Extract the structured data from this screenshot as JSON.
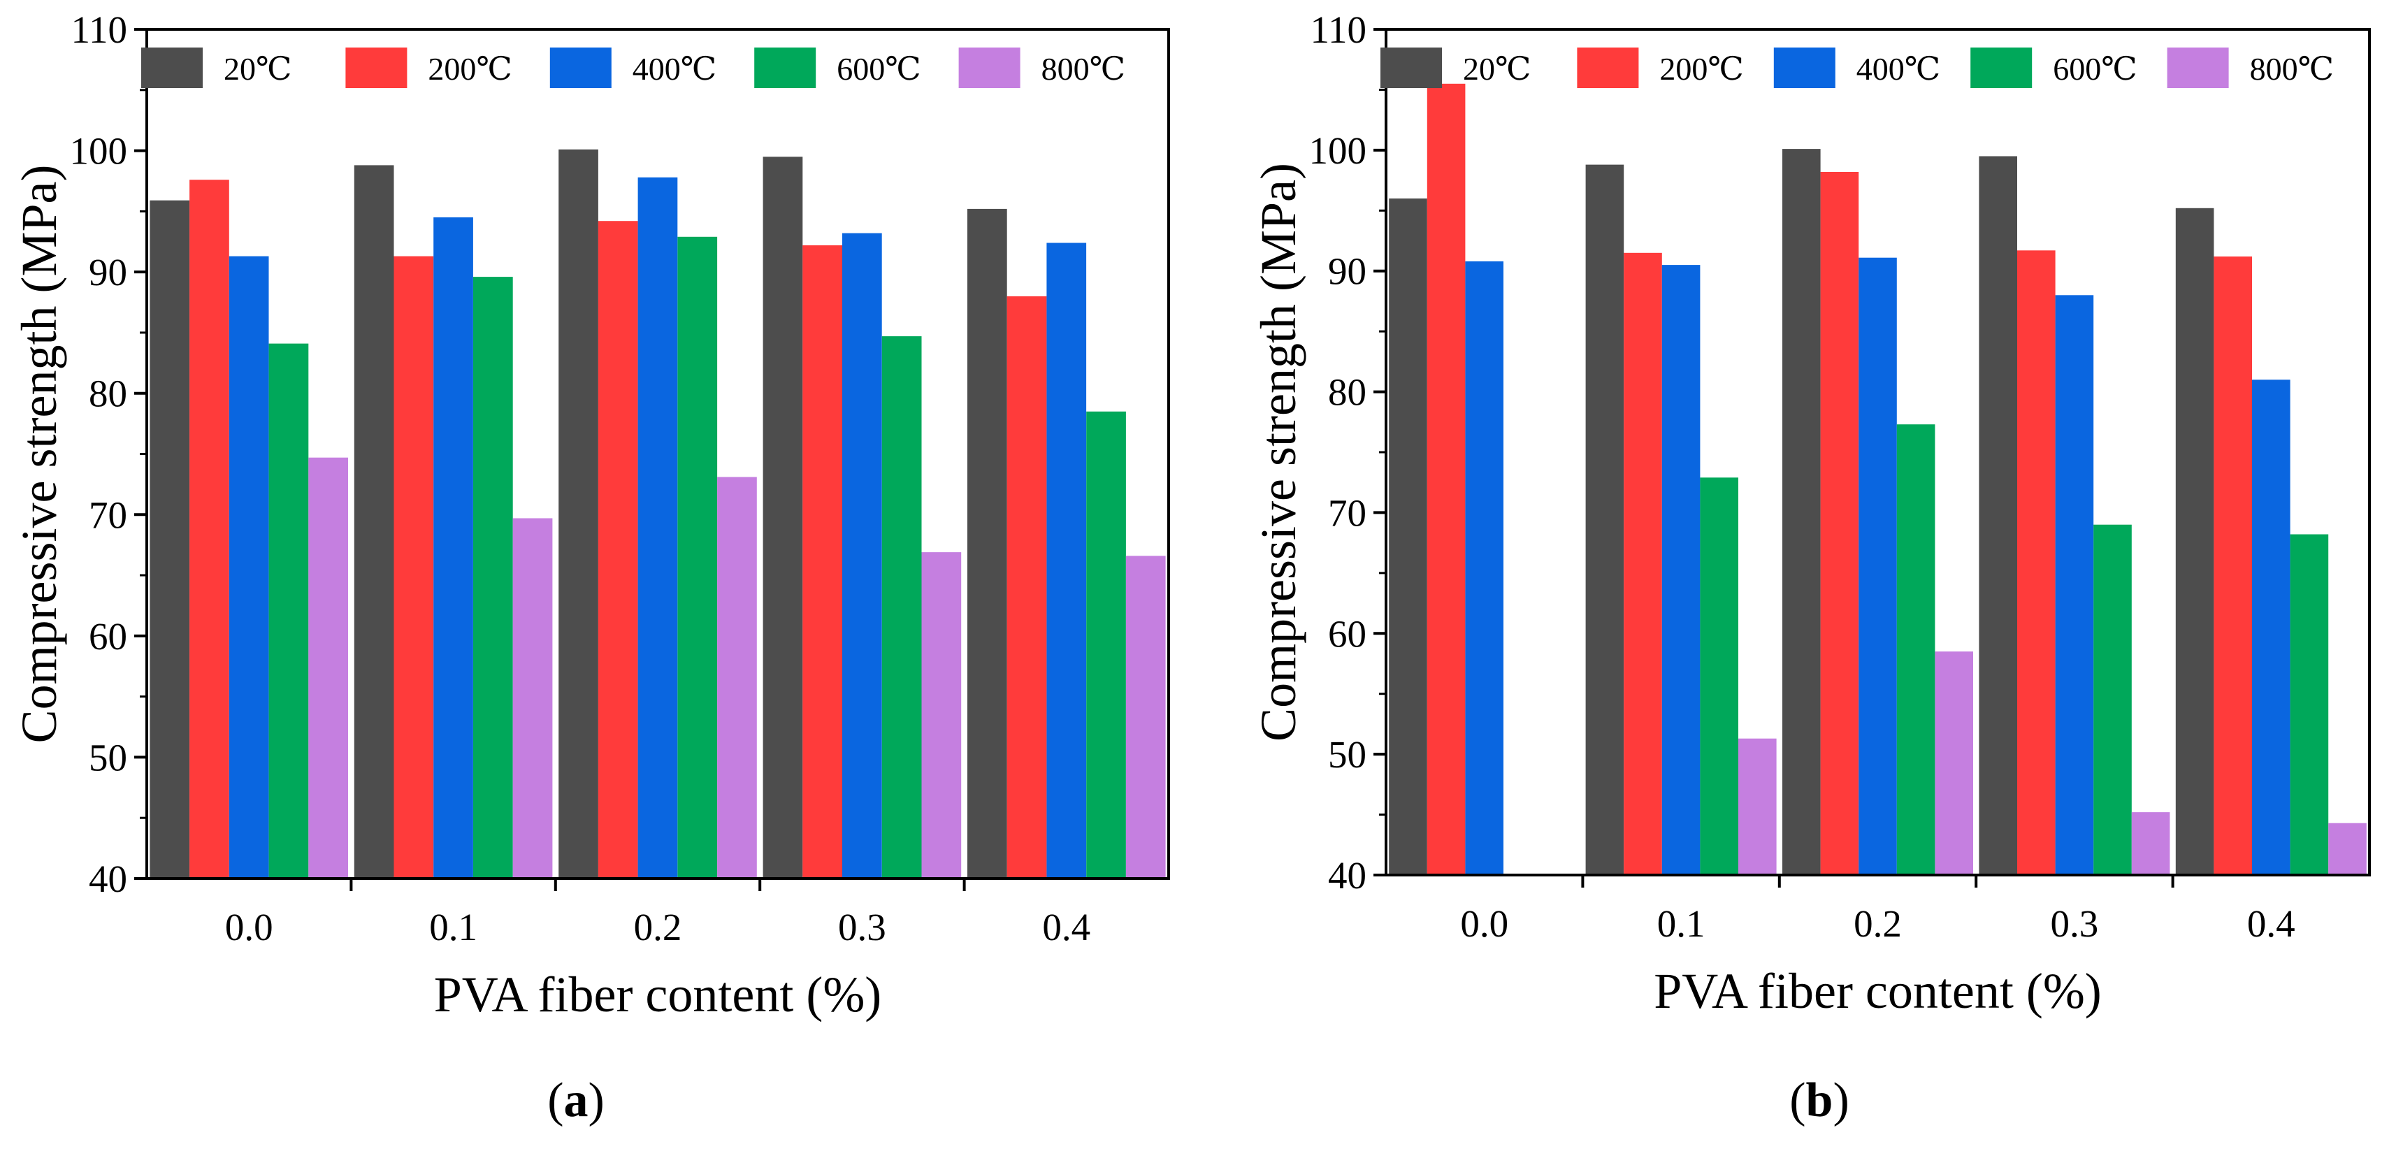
{
  "chart_data": [
    {
      "type": "bar",
      "categories": [
        "0.0",
        "0.1",
        "0.2",
        "0.3",
        "0.4"
      ],
      "series": [
        {
          "name": "20℃",
          "color": "#4d4d4d",
          "values": [
            95.9,
            98.8,
            100.1,
            99.5,
            95.2
          ]
        },
        {
          "name": "200℃",
          "color": "#ff3b3b",
          "values": [
            97.6,
            91.3,
            94.2,
            92.2,
            88.0
          ]
        },
        {
          "name": "400℃",
          "color": "#0a66e0",
          "values": [
            91.3,
            94.5,
            97.8,
            93.2,
            92.4
          ]
        },
        {
          "name": "600℃",
          "color": "#00a85a",
          "values": [
            84.1,
            89.6,
            92.9,
            84.7,
            78.5
          ]
        },
        {
          "name": "800℃",
          "color": "#c57fe0",
          "values": [
            74.7,
            69.7,
            73.1,
            66.9,
            66.6
          ]
        }
      ],
      "xlabel": "PVA fiber content (%)",
      "ylabel": "Compressive strength (MPa)",
      "ylim": [
        40,
        110
      ],
      "yticks": [
        "40",
        "50",
        "60",
        "70",
        "80",
        "90",
        "100",
        "110"
      ],
      "grid": false,
      "legend_position": "top",
      "panel_label": {
        "open": "(",
        "letter": "a",
        "close": ")"
      }
    },
    {
      "type": "bar",
      "categories": [
        "0.0",
        "0.1",
        "0.2",
        "0.3",
        "0.4"
      ],
      "series": [
        {
          "name": "20℃",
          "color": "#4d4d4d",
          "values": [
            96.0,
            98.8,
            100.1,
            99.5,
            95.2
          ]
        },
        {
          "name": "200℃",
          "color": "#ff3b3b",
          "values": [
            105.5,
            91.5,
            98.2,
            91.7,
            91.2
          ]
        },
        {
          "name": "400℃",
          "color": "#0a66e0",
          "values": [
            90.8,
            90.5,
            91.1,
            88.0,
            81.0
          ]
        },
        {
          "name": "600℃",
          "color": "#00a85a",
          "values": [
            null,
            72.9,
            77.3,
            69.0,
            68.2
          ]
        },
        {
          "name": "800℃",
          "color": "#c57fe0",
          "values": [
            null,
            51.3,
            58.5,
            45.2,
            44.3
          ]
        }
      ],
      "xlabel": "PVA fiber content (%)",
      "ylabel": "Compressive strength (MPa)",
      "ylim": [
        40,
        110
      ],
      "yticks": [
        "40",
        "50",
        "60",
        "70",
        "80",
        "90",
        "100",
        "110"
      ],
      "grid": false,
      "legend_position": "top",
      "panel_label": {
        "open": "(",
        "letter": "b",
        "close": ")"
      }
    }
  ]
}
